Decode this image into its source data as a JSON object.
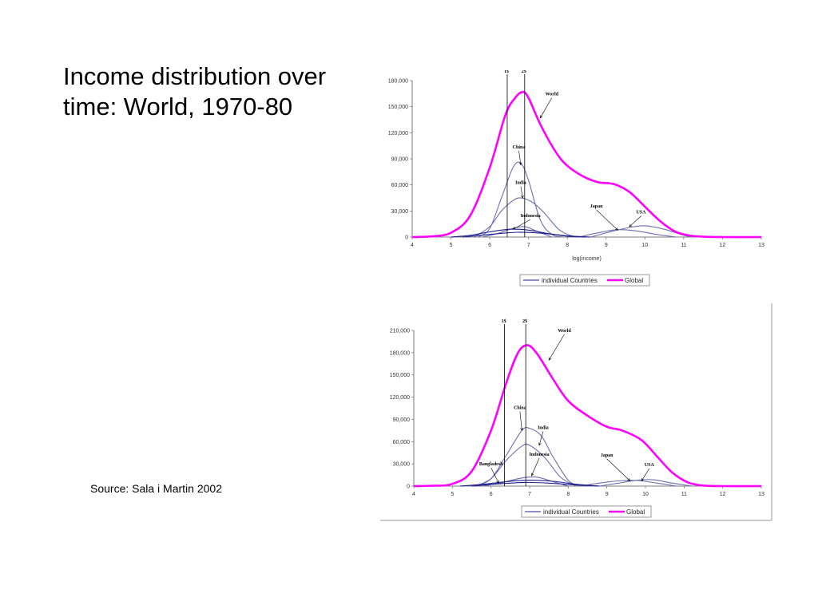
{
  "slide": {
    "title": "Income distribution over time: World, 1970-80",
    "source": "Source: Sala i Martin 2002"
  },
  "colors": {
    "global": "#ff00ff",
    "individual": "#6b6fb0",
    "individual_dark": "#1f1f8f",
    "axis": "#555555"
  },
  "chart_data": [
    {
      "type": "line",
      "xlabel": "log(income)",
      "ylabel": "",
      "xlim": [
        4,
        13
      ],
      "ylim": [
        0,
        180000
      ],
      "x_ticks": [
        4,
        5,
        6,
        7,
        8,
        9,
        10,
        11,
        12,
        13
      ],
      "y_ticks": [
        0,
        30000,
        60000,
        90000,
        120000,
        150000,
        180000
      ],
      "y_tick_labels": [
        "0",
        "30,000",
        "60,000",
        "90,000",
        "120,000",
        "150,000",
        "180,000"
      ],
      "vlines": [
        {
          "x": 6.45,
          "label": "1$"
        },
        {
          "x": 6.9,
          "label": "2$"
        }
      ],
      "legend": {
        "placement": "bottom-center",
        "entries": [
          "individual Countries",
          "Global"
        ]
      },
      "series": [
        {
          "name": "Global",
          "style": "global",
          "x": [
            4,
            4.5,
            5,
            5.5,
            6,
            6.4,
            6.65,
            6.85,
            7,
            7.3,
            7.7,
            8,
            8.4,
            8.8,
            9.2,
            9.6,
            10,
            10.4,
            10.8,
            11.2,
            11.6,
            12,
            13
          ],
          "y": [
            0,
            800,
            5000,
            25000,
            80000,
            140000,
            160000,
            167000,
            160000,
            130000,
            98000,
            82000,
            70000,
            63000,
            61000,
            52000,
            35000,
            18000,
            6000,
            1500,
            300,
            0,
            0
          ]
        },
        {
          "name": "China",
          "style": "individual",
          "x": [
            5.7,
            6,
            6.3,
            6.6,
            6.8,
            7.0,
            7.3,
            7.6,
            7.9
          ],
          "y": [
            0,
            10000,
            45000,
            80000,
            85000,
            65000,
            20000,
            3000,
            0
          ]
        },
        {
          "name": "India",
          "style": "individual",
          "x": [
            5.6,
            6,
            6.3,
            6.6,
            6.8,
            7.1,
            7.4,
            7.8,
            8.2
          ],
          "y": [
            0,
            12000,
            30000,
            42000,
            45000,
            40000,
            28000,
            8000,
            0
          ]
        },
        {
          "name": "Indonesia",
          "style": "individual",
          "x": [
            5.8,
            6.2,
            6.6,
            6.9,
            7.2,
            7.6
          ],
          "y": [
            0,
            4000,
            10000,
            12000,
            7000,
            0
          ]
        },
        {
          "name": "Japan",
          "style": "individual",
          "x": [
            8.3,
            8.8,
            9.3,
            9.8,
            10.3,
            10.8
          ],
          "y": [
            0,
            5000,
            8500,
            7000,
            3000,
            0
          ]
        },
        {
          "name": "USA",
          "style": "individual",
          "x": [
            8.6,
            9.1,
            9.6,
            10.0,
            10.5,
            11.0,
            11.3
          ],
          "y": [
            0,
            6000,
            11000,
            13000,
            9000,
            2000,
            0
          ]
        },
        {
          "name": "",
          "style": "individual_dark",
          "x": [
            5.0,
            5.5,
            6,
            6.5,
            7,
            7.5,
            8,
            8.5
          ],
          "y": [
            0,
            2000,
            6000,
            9000,
            8000,
            4000,
            1000,
            0
          ]
        },
        {
          "name": "",
          "style": "individual_dark",
          "x": [
            5.3,
            6,
            6.7,
            7.3,
            8,
            8.6
          ],
          "y": [
            0,
            3000,
            5500,
            4500,
            1500,
            0
          ]
        }
      ],
      "annotations": [
        {
          "text": "World",
          "x": 7.6,
          "y": 163000,
          "arrow_to": [
            7.3,
            137000
          ]
        },
        {
          "text": "China",
          "x": 6.75,
          "y": 102000,
          "arrow_to": [
            6.8,
            83000
          ]
        },
        {
          "text": "India",
          "x": 6.8,
          "y": 61000,
          "arrow_to": [
            6.85,
            45000
          ]
        },
        {
          "text": "Indonesia",
          "x": 7.05,
          "y": 23000,
          "arrow_to": [
            6.6,
            9000
          ]
        },
        {
          "text": "Japan",
          "x": 8.75,
          "y": 34000,
          "arrow_to": [
            9.3,
            8000
          ]
        },
        {
          "text": "USA",
          "x": 9.9,
          "y": 27000,
          "arrow_to": [
            9.6,
            12000
          ]
        }
      ]
    },
    {
      "type": "line",
      "xlabel": "",
      "ylabel": "",
      "xlim": [
        4,
        13
      ],
      "ylim": [
        0,
        210000
      ],
      "x_ticks": [
        4,
        5,
        6,
        7,
        8,
        9,
        10,
        11,
        12,
        13
      ],
      "y_ticks": [
        0,
        30000,
        60000,
        90000,
        120000,
        150000,
        180000,
        210000
      ],
      "y_tick_labels": [
        "0",
        "30,000",
        "60,000",
        "90,000",
        "120,000",
        "150,000",
        "180,000",
        "210,000"
      ],
      "vlines": [
        {
          "x": 6.35,
          "label": "1$"
        },
        {
          "x": 6.9,
          "label": "2$"
        }
      ],
      "legend": {
        "placement": "bottom-center",
        "entries": [
          "individual Countries",
          "Global"
        ]
      },
      "series": [
        {
          "name": "Global",
          "style": "global",
          "x": [
            4,
            4.5,
            5,
            5.5,
            6,
            6.4,
            6.7,
            6.95,
            7.2,
            7.6,
            8,
            8.5,
            9,
            9.4,
            9.9,
            10.3,
            10.7,
            11.1,
            11.5,
            12,
            13
          ],
          "y": [
            0,
            500,
            3000,
            20000,
            75000,
            140000,
            180000,
            190000,
            178000,
            145000,
            115000,
            95000,
            80000,
            75000,
            62000,
            40000,
            18000,
            5000,
            800,
            0,
            0
          ]
        },
        {
          "name": "China",
          "style": "individual",
          "x": [
            5.6,
            6,
            6.4,
            6.8,
            7.0,
            7.3,
            7.6,
            8.0,
            8.3
          ],
          "y": [
            0,
            10000,
            42000,
            75000,
            78000,
            68000,
            40000,
            8000,
            0
          ]
        },
        {
          "name": "India",
          "style": "individual",
          "x": [
            5.6,
            6,
            6.4,
            6.8,
            7.0,
            7.4,
            7.8,
            8.2
          ],
          "y": [
            0,
            10000,
            35000,
            54000,
            55000,
            38000,
            12000,
            0
          ]
        },
        {
          "name": "Indonesia",
          "style": "individual",
          "x": [
            5.8,
            6.3,
            6.8,
            7.2,
            7.6,
            8.0
          ],
          "y": [
            0,
            5000,
            11000,
            12000,
            6000,
            0
          ]
        },
        {
          "name": "Japan",
          "style": "individual",
          "x": [
            8.3,
            8.8,
            9.3,
            9.8,
            10.3,
            10.8
          ],
          "y": [
            0,
            4000,
            7000,
            7500,
            4000,
            0
          ]
        },
        {
          "name": "USA",
          "style": "individual",
          "x": [
            8.8,
            9.3,
            9.8,
            10.2,
            10.7,
            11.2
          ],
          "y": [
            0,
            4000,
            8000,
            8500,
            4000,
            0
          ]
        },
        {
          "name": "",
          "style": "individual_dark",
          "x": [
            5.2,
            5.8,
            6.4,
            7.0,
            7.6,
            8.2,
            8.8
          ],
          "y": [
            0,
            2500,
            6000,
            8000,
            6500,
            2500,
            0
          ]
        },
        {
          "name": "",
          "style": "individual_dark",
          "x": [
            5.5,
            6.2,
            6.9,
            7.5,
            8.2,
            8.8
          ],
          "y": [
            0,
            3000,
            5000,
            4000,
            1500,
            0
          ]
        }
      ],
      "annotations": [
        {
          "text": "World",
          "x": 7.9,
          "y": 208000,
          "arrow_to": [
            7.5,
            170000
          ]
        },
        {
          "text": "China",
          "x": 6.75,
          "y": 104000,
          "arrow_to": [
            6.8,
            75000
          ]
        },
        {
          "text": "India",
          "x": 7.35,
          "y": 77000,
          "arrow_to": [
            7.25,
            55000
          ]
        },
        {
          "text": "Indonesia",
          "x": 7.25,
          "y": 41000,
          "arrow_to": [
            7.05,
            14000
          ]
        },
        {
          "text": "Japan",
          "x": 9.0,
          "y": 40000,
          "arrow_to": [
            9.6,
            7000
          ]
        },
        {
          "text": "USA",
          "x": 10.1,
          "y": 27000,
          "arrow_to": [
            9.9,
            7000
          ]
        },
        {
          "text": "Bangladesh",
          "x": 6.0,
          "y": 28000,
          "arrow_to": [
            6.2,
            4000
          ]
        }
      ]
    }
  ]
}
